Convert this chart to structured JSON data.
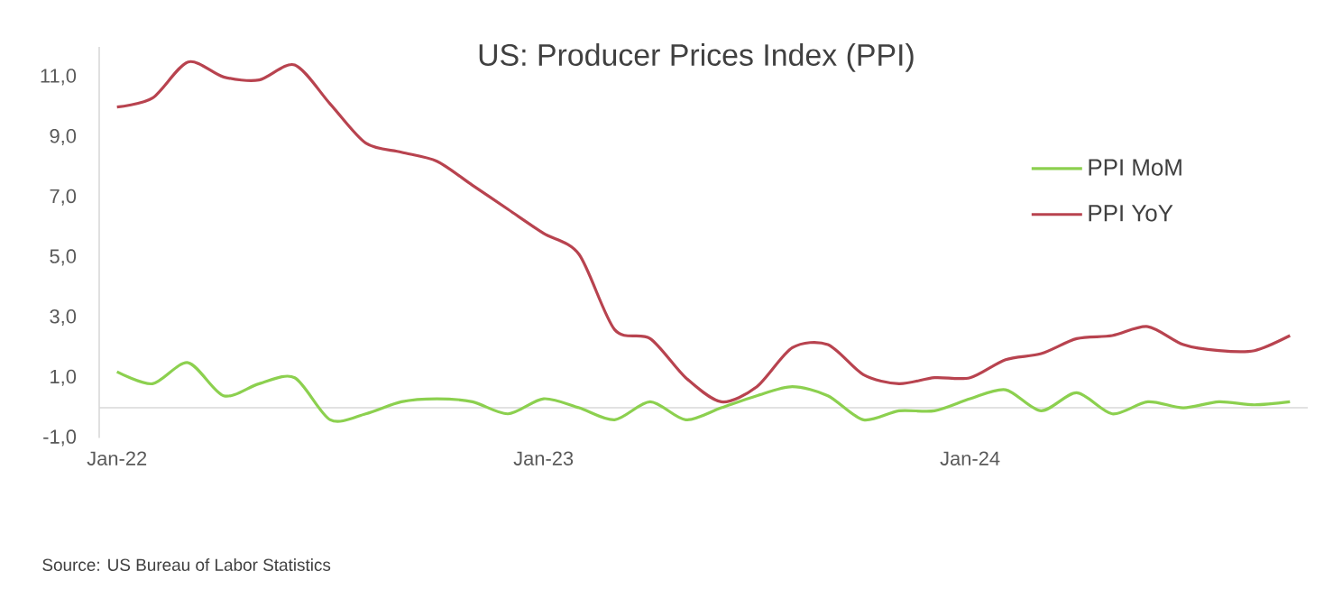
{
  "chart_data": {
    "type": "line",
    "title": "US: Producer Prices Index (PPI)",
    "annotations": [
      "Source: US Bureau of Labor Statistics"
    ],
    "categories": [
      "Jan-22",
      null,
      null,
      null,
      null,
      null,
      null,
      null,
      null,
      null,
      null,
      null,
      "Jan-23",
      null,
      null,
      null,
      null,
      null,
      null,
      null,
      null,
      null,
      null,
      null,
      "Jan-24",
      null,
      null,
      null,
      null,
      null,
      null,
      null,
      null,
      null
    ],
    "series": [
      {
        "name": "PPI MoM",
        "color": "#8cd04f",
        "values": [
          1.2,
          0.8,
          1.5,
          0.4,
          0.8,
          1.0,
          -0.4,
          -0.2,
          0.2,
          0.3,
          0.2,
          -0.2,
          0.3,
          0.0,
          -0.4,
          0.2,
          -0.4,
          0.0,
          0.4,
          0.7,
          0.4,
          -0.4,
          -0.1,
          -0.1,
          0.3,
          0.6,
          -0.1,
          0.5,
          -0.2,
          0.2,
          0.0,
          0.2,
          0.1,
          0.2
        ]
      },
      {
        "name": "PPI YoY",
        "color": "#b8434f",
        "values": [
          10.0,
          10.3,
          11.5,
          11.0,
          10.9,
          11.4,
          10.1,
          8.8,
          8.5,
          8.2,
          7.4,
          6.6,
          5.8,
          5.1,
          2.6,
          2.3,
          1.0,
          0.2,
          0.7,
          2.0,
          2.1,
          1.1,
          0.8,
          1.0,
          1.0,
          1.6,
          1.8,
          2.3,
          2.4,
          2.7,
          2.1,
          1.9,
          1.9,
          2.4
        ]
      }
    ],
    "ylim": [
      -1,
      12
    ],
    "yticks": [
      {
        "value": -1,
        "label": "-1,0"
      },
      {
        "value": 1,
        "label": "1,0"
      },
      {
        "value": 3,
        "label": "3,0"
      },
      {
        "value": 5,
        "label": "5,0"
      },
      {
        "value": 7,
        "label": "7,0"
      },
      {
        "value": 9,
        "label": "9,0"
      },
      {
        "value": 11,
        "label": "11,0"
      }
    ],
    "legend": "right",
    "grid": false,
    "marker": "none",
    "line_style": "solid"
  }
}
